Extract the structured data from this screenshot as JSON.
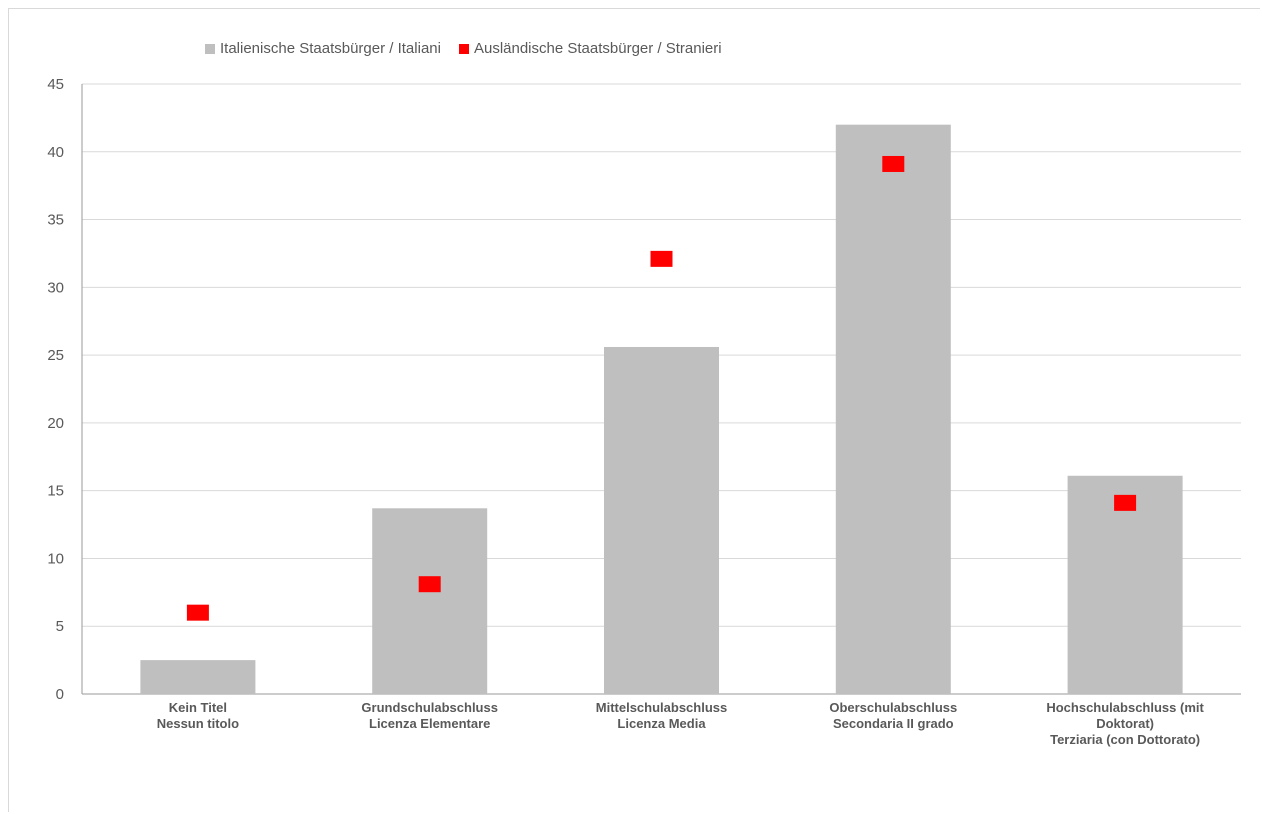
{
  "chart_data": {
    "type": "bar",
    "categories": [
      [
        "Kein Titel",
        "Nessun titolo"
      ],
      [
        "Grundschulabschluss",
        "Licenza Elementare"
      ],
      [
        "Mittelschulabschluss",
        "Licenza Media"
      ],
      [
        "Oberschulabschluss",
        "Secondaria II grado"
      ],
      [
        "Hochschulabschluss (mit",
        "Doktorat)",
        "Terziaria (con Dottorato)"
      ]
    ],
    "series": [
      {
        "name": "Italienische Staatsbürger / Italiani",
        "kind": "bar",
        "color": "#bfbfbf",
        "values": [
          2.5,
          13.7,
          25.6,
          42.0,
          16.1
        ]
      },
      {
        "name": "Ausländische Staatsbürger / Stranieri",
        "kind": "marker",
        "color": "#ff0000",
        "values": [
          6.0,
          8.1,
          32.1,
          39.1,
          14.1
        ]
      }
    ],
    "ylim": [
      0,
      45
    ],
    "yticks": [
      0,
      5,
      10,
      15,
      20,
      25,
      30,
      35,
      40,
      45
    ],
    "grid": true,
    "legend_position": "top-left"
  }
}
